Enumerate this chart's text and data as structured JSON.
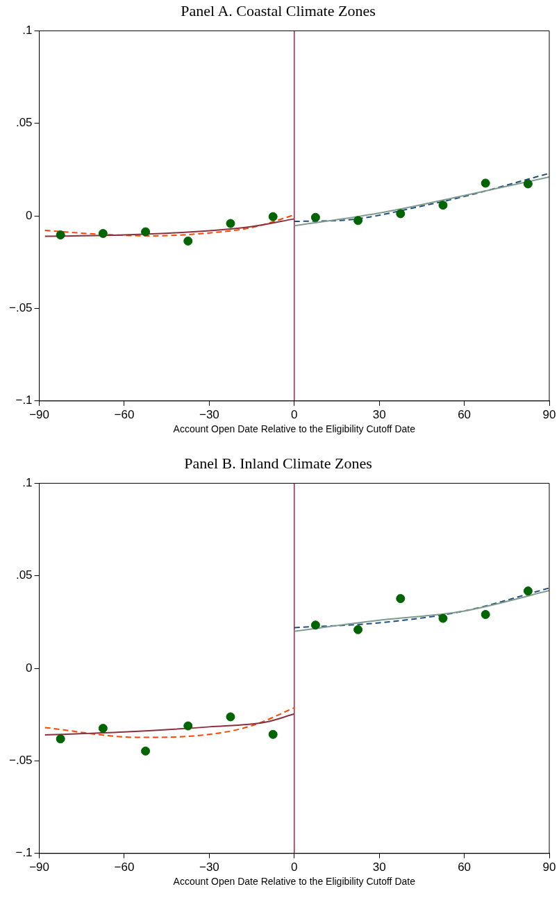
{
  "chart_data": [
    {
      "type": "scatter",
      "title": "Panel A. Coastal Climate Zones",
      "xlabel": "Account Open Date Relative to the Eligibility Cutoff Date",
      "xlim": [
        -90,
        90
      ],
      "ylim": [
        -0.1,
        0.1
      ],
      "xticks": [
        {
          "value": -90,
          "label": "−90"
        },
        {
          "value": -60,
          "label": "−60"
        },
        {
          "value": -30,
          "label": "−30"
        },
        0,
        30,
        60,
        90
      ],
      "yticks": [
        {
          "value": -0.1,
          "label": "−.1"
        },
        {
          "value": -0.05,
          "label": "−.05"
        },
        0,
        {
          "value": 0.05,
          "label": ".05"
        },
        {
          "value": 0.1,
          "label": ".1"
        }
      ],
      "grid": false,
      "legend": false,
      "ref_lines": [
        {
          "axis": "x",
          "value": 0,
          "color": "#c8143c"
        }
      ],
      "series": [
        {
          "color": "#006400",
          "marker": "circle",
          "x": [
            -82.5,
            -67.5,
            -52.5,
            -37.5,
            -22.5,
            -7.5,
            7.5,
            22.5,
            37.5,
            52.5,
            67.5,
            82.5
          ],
          "values": [
            -0.0103,
            -0.0095,
            -0.0086,
            -0.0136,
            -0.0041,
            -0.0004,
            -0.0008,
            -0.0025,
            0.0012,
            0.0058,
            0.0177,
            0.0173
          ]
        },
        {
          "type": "line",
          "color": "#8b2f3c",
          "line_style": "solid",
          "x": [
            -88,
            -60,
            -30,
            -15,
            0
          ],
          "values": [
            -0.011,
            -0.0103,
            -0.008,
            -0.0058,
            -0.0016
          ]
        },
        {
          "type": "line",
          "color": "#ff4500",
          "line_style": "dashed",
          "x": [
            -88,
            -70,
            -50,
            -30,
            -15,
            0
          ],
          "values": [
            -0.0078,
            -0.0098,
            -0.0108,
            -0.0092,
            -0.0063,
            0.0005
          ]
        },
        {
          "type": "line",
          "color": "#7f9a8e",
          "line_style": "solid",
          "x": [
            0,
            30,
            60,
            90
          ],
          "values": [
            -0.0053,
            0.0015,
            0.011,
            0.021
          ]
        },
        {
          "type": "line",
          "color": "#1f4e79",
          "line_style": "dashed",
          "x": [
            0,
            20,
            45,
            60,
            90
          ],
          "values": [
            -0.003,
            -0.002,
            0.0053,
            0.0105,
            0.023
          ]
        }
      ]
    },
    {
      "type": "scatter",
      "title": "Panel B. Inland Climate Zones",
      "xlabel": "Account Open Date Relative to the Eligibility Cutoff Date",
      "xlim": [
        -90,
        90
      ],
      "ylim": [
        -0.1,
        0.1
      ],
      "xticks": [
        {
          "value": -90,
          "label": "−90"
        },
        {
          "value": -60,
          "label": "−60"
        },
        {
          "value": -30,
          "label": "−30"
        },
        0,
        30,
        60,
        90
      ],
      "yticks": [
        {
          "value": -0.1,
          "label": "−.1"
        },
        {
          "value": -0.05,
          "label": "−.05"
        },
        0,
        {
          "value": 0.05,
          "label": ".05"
        },
        {
          "value": 0.1,
          "label": ".1"
        }
      ],
      "grid": false,
      "legend": false,
      "ref_lines": [
        {
          "axis": "x",
          "value": 0,
          "color": "#c8143c"
        }
      ],
      "series": [
        {
          "color": "#006400",
          "marker": "circle",
          "x": [
            -82.5,
            -67.5,
            -52.5,
            -37.5,
            -22.5,
            -7.5,
            7.5,
            22.5,
            37.5,
            52.5,
            67.5,
            82.5
          ],
          "values": [
            -0.0381,
            -0.0324,
            -0.0447,
            -0.0311,
            -0.0262,
            -0.0357,
            0.0234,
            0.0209,
            0.0377,
            0.027,
            0.0291,
            0.0418
          ]
        },
        {
          "type": "line",
          "color": "#8b2f3c",
          "line_style": "solid",
          "x": [
            -88,
            -60,
            -30,
            -10,
            0
          ],
          "values": [
            -0.036,
            -0.0344,
            -0.0316,
            -0.029,
            -0.0246
          ]
        },
        {
          "type": "line",
          "color": "#ff4500",
          "line_style": "dashed",
          "x": [
            -88,
            -55,
            -30,
            -15,
            0
          ],
          "values": [
            -0.032,
            -0.0373,
            -0.0357,
            -0.031,
            -0.0213
          ]
        },
        {
          "type": "line",
          "color": "#7f9a8e",
          "line_style": "solid",
          "x": [
            0,
            30,
            60,
            90
          ],
          "values": [
            0.02,
            0.026,
            0.031,
            0.042
          ]
        },
        {
          "type": "line",
          "color": "#1f4e79",
          "line_style": "dashed",
          "x": [
            0,
            30,
            60,
            90
          ],
          "values": [
            0.022,
            0.0246,
            0.031,
            0.0434
          ]
        }
      ]
    }
  ]
}
